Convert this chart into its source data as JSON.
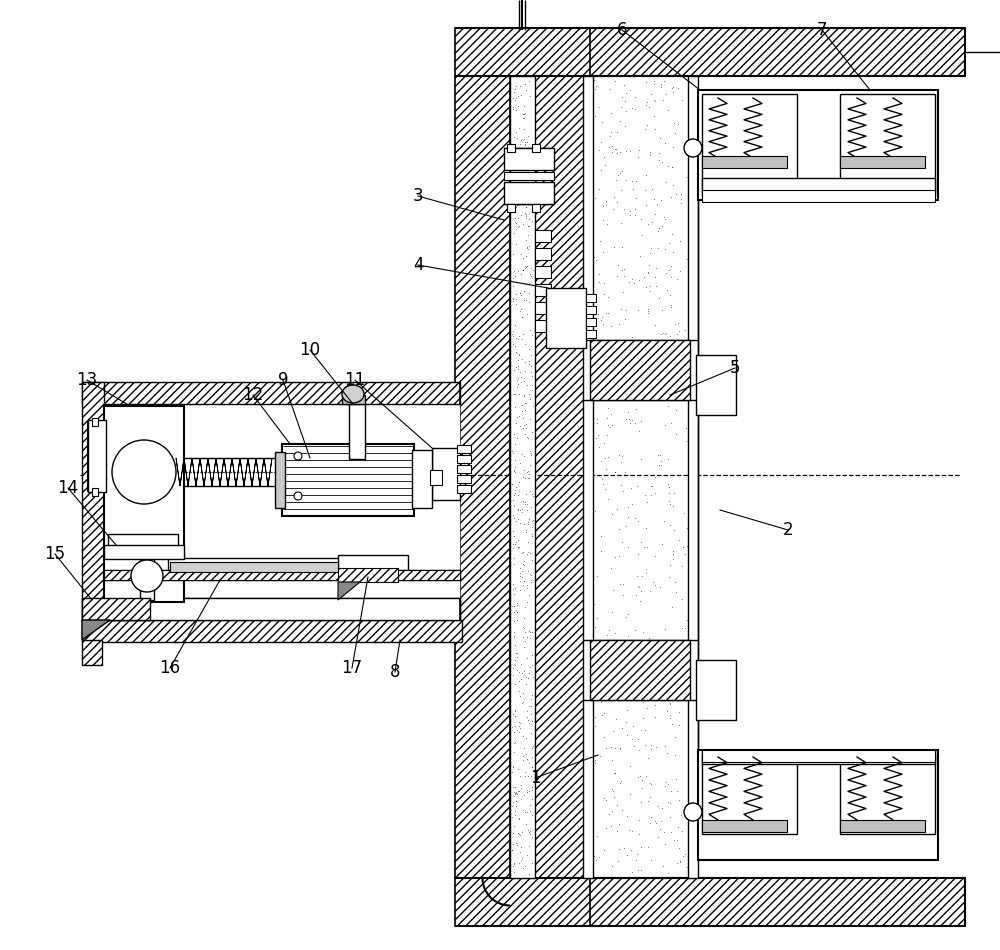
{
  "background_color": "#ffffff",
  "figsize": [
    10.0,
    9.5
  ],
  "dpi": 100
}
